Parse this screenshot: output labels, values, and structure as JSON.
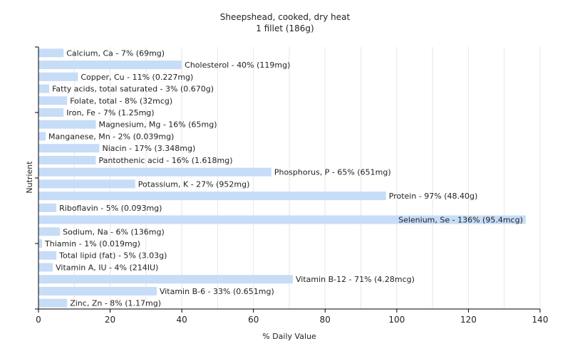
{
  "chart_data": {
    "type": "bar",
    "orientation": "horizontal",
    "title": "Sheepshead, cooked, dry heat",
    "subtitle": "1 fillet (186g)",
    "xlabel": "% Daily Value",
    "ylabel": "Nutrient",
    "xlim": [
      0,
      140
    ],
    "xticks": [
      0,
      20,
      40,
      60,
      80,
      100,
      120,
      140
    ],
    "grid": true,
    "bar_color": "#c6dcf7",
    "categories": [
      "Calcium, Ca",
      "Cholesterol",
      "Copper, Cu",
      "Fatty acids, total saturated",
      "Folate, total",
      "Iron, Fe",
      "Magnesium, Mg",
      "Manganese, Mn",
      "Niacin",
      "Pantothenic acid",
      "Phosphorus, P",
      "Potassium, K",
      "Protein",
      "Riboflavin",
      "Selenium, Se",
      "Sodium, Na",
      "Thiamin",
      "Total lipid (fat)",
      "Vitamin A, IU",
      "Vitamin B-12",
      "Vitamin B-6",
      "Zinc, Zn"
    ],
    "values": [
      7,
      40,
      11,
      3,
      8,
      7,
      16,
      2,
      17,
      16,
      65,
      27,
      97,
      5,
      136,
      6,
      1,
      5,
      4,
      71,
      33,
      8
    ],
    "labels": [
      "Calcium, Ca - 7% (69mg)",
      "Cholesterol - 40% (119mg)",
      "Copper, Cu - 11% (0.227mg)",
      "Fatty acids, total saturated - 3% (0.670g)",
      "Folate, total - 8% (32mcg)",
      "Iron, Fe - 7% (1.25mg)",
      "Magnesium, Mg - 16% (65mg)",
      "Manganese, Mn - 2% (0.039mg)",
      "Niacin - 17% (3.348mg)",
      "Pantothenic acid - 16% (1.618mg)",
      "Phosphorus, P - 65% (651mg)",
      "Potassium, K - 27% (952mg)",
      "Protein - 97% (48.40g)",
      "Riboflavin - 5% (0.093mg)",
      "Selenium, Se - 136% (95.4mcg)",
      "Sodium, Na - 6% (136mg)",
      "Thiamin - 1% (0.019mg)",
      "Total lipid (fat) - 5% (3.03g)",
      "Vitamin A, IU - 4% (214IU)",
      "Vitamin B-12 - 71% (4.28mcg)",
      "Vitamin B-6 - 33% (0.651mg)",
      "Zinc, Zn - 8% (1.17mg)"
    ]
  }
}
